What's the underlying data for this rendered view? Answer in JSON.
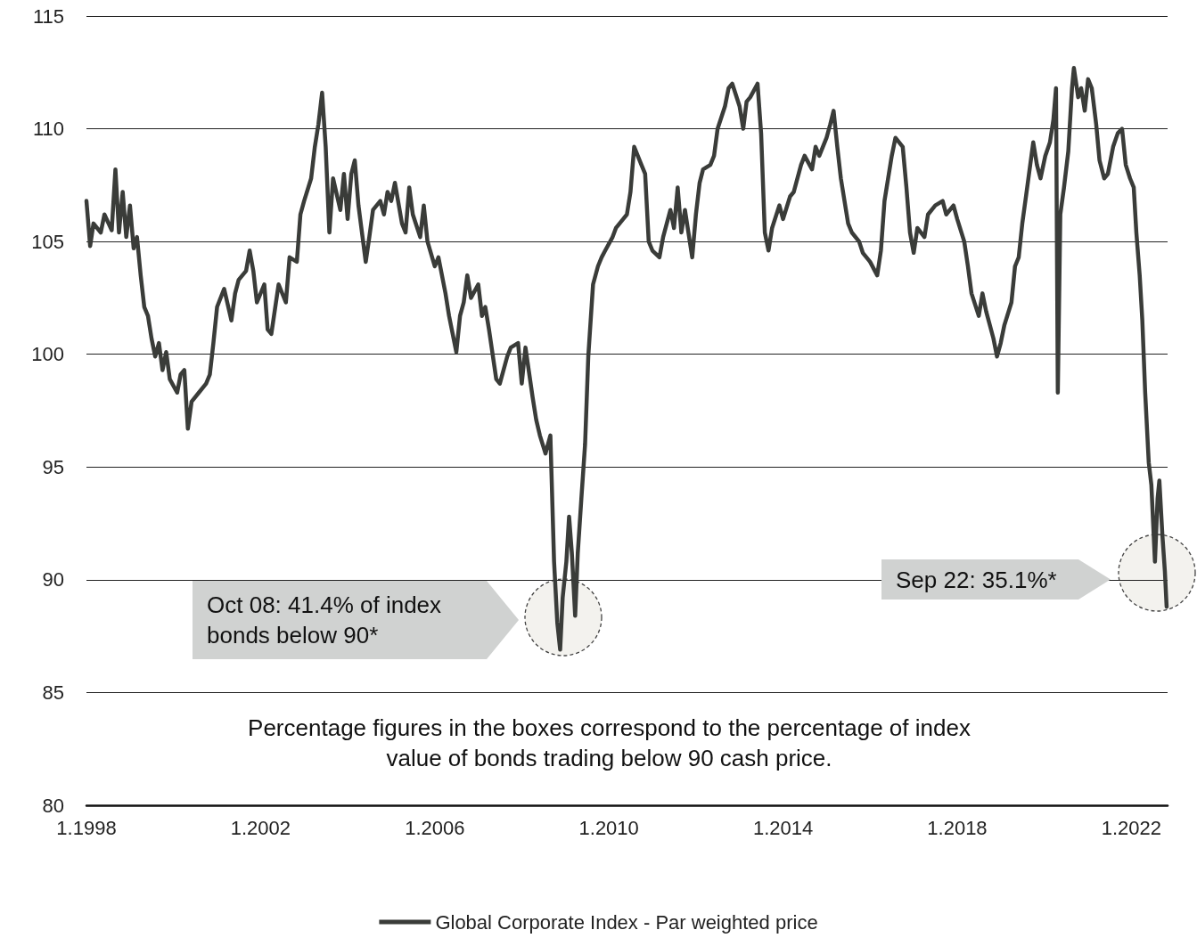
{
  "chart_data": {
    "type": "line",
    "x": [
      "1998-01",
      "1998-02",
      "1998-03",
      "1998-05",
      "1998-06",
      "1998-08",
      "1998-09",
      "1998-10",
      "1998-11",
      "1998-12",
      "1999-01",
      "1999-02",
      "1999-03",
      "1999-04",
      "1999-05",
      "1999-06",
      "1999-07",
      "1999-08",
      "1999-09",
      "1999-10",
      "1999-11",
      "1999-12",
      "2000-02",
      "2000-03",
      "2000-04",
      "2000-05",
      "2000-06",
      "2000-08",
      "2000-10",
      "2000-11",
      "2000-12",
      "2001-01",
      "2001-03",
      "2001-05",
      "2001-06",
      "2001-07",
      "2001-09",
      "2001-10",
      "2001-11",
      "2001-12",
      "2002-02",
      "2002-03",
      "2002-04",
      "2002-06",
      "2002-08",
      "2002-09",
      "2002-11",
      "2002-12",
      "2003-01",
      "2003-03",
      "2003-04",
      "2003-05",
      "2003-06",
      "2003-07",
      "2003-08",
      "2003-09",
      "2003-11",
      "2003-12",
      "2004-01",
      "2004-02",
      "2004-03",
      "2004-04",
      "2004-06",
      "2004-07",
      "2004-08",
      "2004-10",
      "2004-11",
      "2004-12",
      "2005-01",
      "2005-02",
      "2005-04",
      "2005-05",
      "2005-06",
      "2005-07",
      "2005-09",
      "2005-10",
      "2005-11",
      "2006-01",
      "2006-02",
      "2006-04",
      "2006-05",
      "2006-07",
      "2006-08",
      "2006-09",
      "2006-10",
      "2006-11",
      "2007-01",
      "2007-02",
      "2007-03",
      "2007-04",
      "2007-06",
      "2007-07",
      "2007-09",
      "2007-10",
      "2007-12",
      "2008-01",
      "2008-02",
      "2008-04",
      "2008-05",
      "2008-06",
      "2008-07-18",
      "2008-08-28",
      "2008-09-28",
      "2008-10-25",
      "2008-11-18",
      "2008-12-09",
      "2009-01-09",
      "2009-02-01",
      "2009-02-24",
      "2009-03-24",
      "2009-04-15",
      "2009-05-15",
      "2009-06-15",
      "2009-07-12",
      "2009-08-21",
      "2009-10",
      "2009-11",
      "2009-12",
      "2010-02",
      "2010-03",
      "2010-05",
      "2010-06",
      "2010-07",
      "2010-08",
      "2010-10",
      "2010-11",
      "2010-12",
      "2011-01",
      "2011-03",
      "2011-04",
      "2011-06",
      "2011-07",
      "2011-08",
      "2011-09",
      "2011-10",
      "2011-12",
      "2012-01",
      "2012-02",
      "2012-03",
      "2012-05",
      "2012-06",
      "2012-07",
      "2012-09",
      "2012-10",
      "2012-11",
      "2013-01",
      "2013-02",
      "2013-03",
      "2013-04",
      "2013-06",
      "2013-07",
      "2013-08",
      "2013-09",
      "2013-10",
      "2013-12",
      "2014-01",
      "2014-03",
      "2014-04",
      "2014-06",
      "2014-07",
      "2014-09",
      "2014-10",
      "2014-11",
      "2015-01",
      "2015-02",
      "2015-03",
      "2015-04",
      "2015-05",
      "2015-07",
      "2015-08",
      "2015-10",
      "2015-11",
      "2016-01",
      "2016-03",
      "2016-04",
      "2016-05",
      "2016-07",
      "2016-08",
      "2016-10",
      "2016-11",
      "2016-12",
      "2017-01",
      "2017-02",
      "2017-04",
      "2017-05",
      "2017-07",
      "2017-09",
      "2017-10",
      "2017-12",
      "2018-01",
      "2018-03",
      "2018-04",
      "2018-05",
      "2018-07",
      "2018-08",
      "2018-09",
      "2018-11",
      "2018-12",
      "2019-01",
      "2019-02",
      "2019-04",
      "2019-05",
      "2019-06",
      "2019-07",
      "2019-08",
      "2019-10",
      "2019-11",
      "2019-12",
      "2020-01-10",
      "2020-02-18",
      "2020-03-18",
      "2020-04-09",
      "2020-04-24",
      "2020-05-15",
      "2020-06-15",
      "2020-07-21",
      "2020-08-21",
      "2020-09-06",
      "2020-10-12",
      "2020-11-06",
      "2020-12-06",
      "2021-01-03",
      "2021-02-03",
      "2021-03-12",
      "2021-04-09",
      "2021-05-18",
      "2021-06-18",
      "2021-08-01",
      "2021-09-09",
      "2021-10-15",
      "2021-11-15",
      "2021-12-21",
      "2022-01-21",
      "2022-02-12",
      "2022-03-12",
      "2022-04-03",
      "2022-04-27",
      "2022-05-27",
      "2022-06-18",
      "2022-07-18",
      "2022-08-09",
      "2022-08-24",
      "2022-09-18",
      "2022-10-09",
      "2022-10-24"
    ],
    "series": [
      {
        "name": "Global Corporate Index - Par weighted price",
        "color": "#3a3c39",
        "values": [
          106.8,
          104.8,
          105.8,
          105.4,
          106.2,
          105.5,
          108.2,
          105.4,
          107.2,
          105.2,
          106.6,
          104.7,
          105.2,
          103.5,
          102.1,
          101.7,
          100.7,
          99.9,
          100.5,
          99.3,
          100.1,
          98.9,
          98.3,
          99.1,
          99.3,
          96.7,
          97.9,
          98.3,
          98.7,
          99.1,
          100.5,
          102.1,
          102.9,
          101.5,
          102.7,
          103.3,
          103.7,
          104.6,
          103.7,
          102.3,
          103.1,
          101.1,
          100.9,
          103.1,
          102.3,
          104.3,
          104.1,
          106.2,
          106.8,
          107.8,
          109.2,
          110.2,
          111.6,
          109.2,
          105.4,
          107.8,
          106.4,
          108.0,
          106.0,
          108.0,
          108.6,
          106.6,
          104.1,
          105.2,
          106.4,
          106.8,
          106.2,
          107.2,
          106.8,
          107.6,
          105.8,
          105.4,
          107.4,
          106.2,
          105.2,
          106.6,
          105.0,
          103.9,
          104.3,
          102.7,
          101.7,
          100.1,
          101.7,
          102.3,
          103.5,
          102.5,
          103.1,
          101.7,
          102.1,
          101.1,
          98.9,
          98.7,
          99.9,
          100.3,
          100.5,
          98.7,
          100.3,
          98.1,
          97.1,
          96.4,
          95.6,
          96.4,
          90.8,
          88.1,
          86.9,
          89.2,
          90.8,
          92.8,
          91.2,
          88.4,
          91.2,
          93.6,
          96.0,
          99.9,
          103.1,
          103.9,
          104.3,
          104.6,
          105.2,
          105.6,
          106.0,
          106.2,
          107.2,
          109.2,
          108.4,
          108.0,
          105.0,
          104.6,
          104.3,
          105.2,
          106.4,
          105.6,
          107.4,
          105.4,
          106.4,
          104.3,
          106.2,
          107.6,
          108.2,
          108.4,
          108.8,
          110.0,
          111.0,
          111.8,
          112.0,
          111.0,
          110.0,
          111.2,
          111.4,
          112.0,
          109.8,
          105.4,
          104.6,
          105.6,
          106.6,
          106.0,
          107.0,
          107.2,
          108.4,
          108.8,
          108.2,
          109.2,
          108.8,
          109.6,
          110.2,
          110.8,
          109.2,
          107.8,
          105.8,
          105.4,
          105.0,
          104.5,
          104.1,
          103.5,
          104.6,
          106.8,
          108.8,
          109.6,
          109.2,
          107.4,
          105.4,
          104.5,
          105.6,
          105.2,
          106.2,
          106.6,
          106.8,
          106.2,
          106.6,
          106.0,
          105.0,
          103.9,
          102.7,
          101.7,
          102.7,
          101.9,
          100.7,
          99.9,
          100.5,
          101.3,
          102.3,
          103.9,
          104.3,
          105.8,
          107.0,
          109.4,
          108.4,
          107.8,
          108.8,
          109.4,
          110.4,
          111.8,
          98.3,
          106.2,
          107.4,
          109.0,
          111.8,
          112.7,
          111.4,
          111.8,
          110.8,
          112.2,
          111.8,
          110.2,
          108.6,
          107.8,
          108.0,
          109.2,
          109.8,
          110.0,
          108.4,
          107.8,
          107.4,
          105.4,
          103.5,
          101.5,
          98.3,
          95.2,
          94.2,
          90.8,
          93.6,
          94.4,
          92.0,
          90.4,
          88.8
        ]
      }
    ],
    "xlim": [
      "1998-01",
      "2022-11"
    ],
    "xticks": [
      {
        "value": "1998-01",
        "label": "1.1998"
      },
      {
        "value": "2002-01",
        "label": "1.2002"
      },
      {
        "value": "2006-01",
        "label": "1.2006"
      },
      {
        "value": "2010-01",
        "label": "1.2010"
      },
      {
        "value": "2014-01",
        "label": "1.2014"
      },
      {
        "value": "2018-01",
        "label": "1.2018"
      },
      {
        "value": "2022-01",
        "label": "1.2022"
      }
    ],
    "ylim": [
      80,
      115
    ],
    "yticks": [
      80,
      85,
      90,
      95,
      100,
      105,
      110,
      115
    ],
    "grid": "y",
    "legend": "bottom",
    "marker": "none",
    "line_style": "solid",
    "annotations": [
      "Oct 08: 41.4% of index bonds below 90*",
      "Sep 22: 35.1%*",
      "Percentage figures in the boxes correspond to the percentage of index value of bonds trading below 90 cash price."
    ]
  }
}
